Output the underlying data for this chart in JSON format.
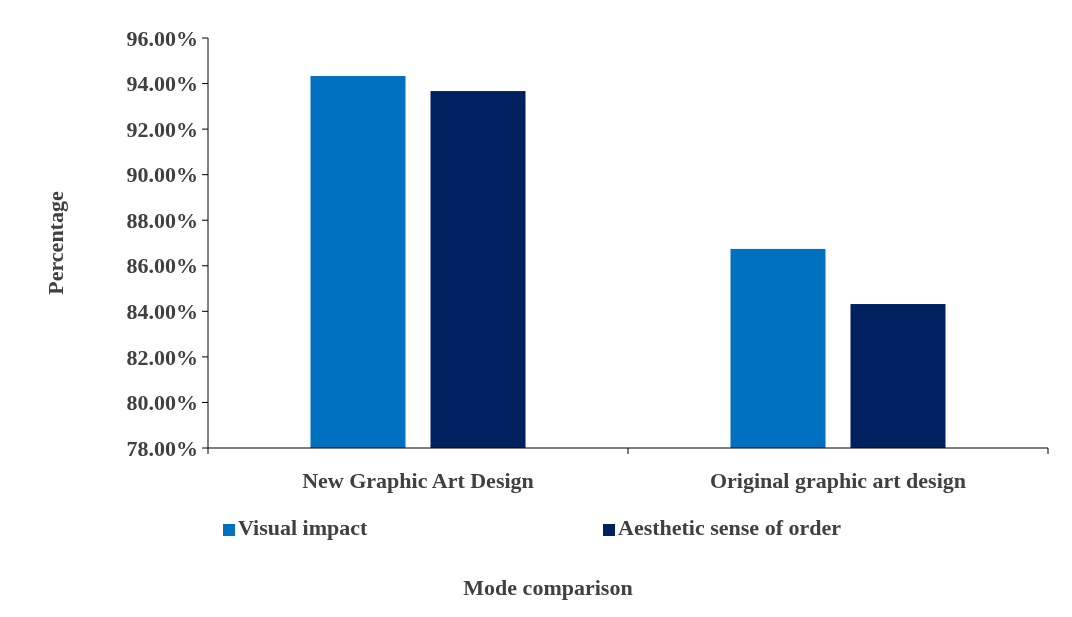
{
  "chart_data": {
    "type": "bar",
    "xlabel": "Mode comparison",
    "ylabel": "Percentage",
    "categories": [
      "New Graphic Art Design",
      "Original graphic art design"
    ],
    "series": [
      {
        "name": "Visual impact",
        "color": "#0070c0",
        "values": [
          94.33,
          86.74
        ]
      },
      {
        "name": "Aesthetic sense of order",
        "color": "#002060",
        "values": [
          93.67,
          84.32
        ]
      }
    ],
    "ylim": [
      78,
      96
    ],
    "yticks": [
      {
        "value": 78,
        "label": "78.00%"
      },
      {
        "value": 80,
        "label": "80.00%"
      },
      {
        "value": 82,
        "label": "82.00%"
      },
      {
        "value": 84,
        "label": "84.00%"
      },
      {
        "value": 86,
        "label": "86.00%"
      },
      {
        "value": 88,
        "label": "88.00%"
      },
      {
        "value": 90,
        "label": "90.00%"
      },
      {
        "value": 92,
        "label": "92.00%"
      },
      {
        "value": 94,
        "label": "94.00%"
      },
      {
        "value": 96,
        "label": "96.00%"
      }
    ],
    "grid": false,
    "legend": "bottom"
  }
}
